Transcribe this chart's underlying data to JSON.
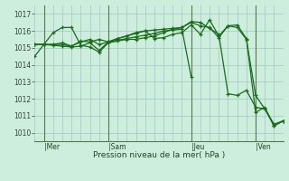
{
  "bg_color": "#ceeedd",
  "grid_color": "#aacccc",
  "line_color": "#1a6b1a",
  "xlabel": "Pression niveau de la mer( hPa )",
  "ylim": [
    1009.5,
    1017.5
  ],
  "xlim": [
    0,
    27
  ],
  "yticks": [
    1010,
    1011,
    1012,
    1013,
    1014,
    1015,
    1016,
    1017
  ],
  "day_labels": [
    "|Mer",
    "|Sam",
    "|Jeu",
    "|Ven"
  ],
  "day_positions": [
    1,
    8,
    17,
    24
  ],
  "series": [
    {
      "x": [
        0,
        1,
        2,
        3,
        4,
        5,
        6,
        7,
        8,
        9,
        10,
        11,
        12,
        13,
        14,
        15,
        16,
        17,
        18,
        19,
        20,
        21,
        22,
        23,
        24,
        25,
        26,
        27
      ],
      "y": [
        1015.2,
        1015.2,
        1015.9,
        1016.2,
        1016.2,
        1015.15,
        1015.05,
        1014.75,
        1015.3,
        1015.4,
        1015.5,
        1015.5,
        1015.6,
        1015.7,
        1015.9,
        1016.1,
        1016.2,
        1016.55,
        1016.5,
        1016.15,
        1015.8,
        1012.3,
        1012.2,
        1012.5,
        1011.5,
        1011.4,
        1010.5,
        1010.7
      ]
    },
    {
      "x": [
        0,
        1,
        2,
        3,
        4,
        5,
        6,
        7,
        8,
        9,
        10,
        11,
        12,
        13,
        14,
        15,
        16,
        17,
        18,
        19,
        20,
        21,
        22,
        23,
        24,
        25,
        26,
        27
      ],
      "y": [
        1015.2,
        1015.2,
        1015.15,
        1015.1,
        1015.05,
        1015.1,
        1015.3,
        1014.85,
        1015.35,
        1015.55,
        1015.7,
        1015.9,
        1016.0,
        1016.05,
        1016.1,
        1016.15,
        1016.2,
        1016.5,
        1016.3,
        1016.2,
        1015.6,
        1016.3,
        1016.35,
        1015.55,
        1011.2,
        1011.5,
        1010.4,
        1010.7
      ]
    },
    {
      "x": [
        0,
        1,
        2,
        3,
        4,
        5,
        6,
        7,
        8,
        9,
        10,
        11,
        12,
        13,
        14,
        15,
        16,
        17,
        18,
        19,
        20,
        21,
        22,
        23,
        24,
        25,
        26,
        27
      ],
      "y": [
        1015.2,
        1015.2,
        1015.2,
        1015.2,
        1015.1,
        1015.35,
        1015.5,
        1015.2,
        1015.35,
        1015.55,
        1015.7,
        1015.85,
        1016.0,
        1015.55,
        1015.6,
        1015.8,
        1015.9,
        1016.35,
        1015.8,
        1016.65,
        1015.7,
        1016.3,
        1016.2,
        1015.5,
        1012.2,
        1011.4,
        1010.4,
        1010.7
      ]
    },
    {
      "x": [
        0,
        1,
        2,
        3,
        4,
        5,
        6,
        7,
        8,
        9,
        10,
        11,
        12,
        13,
        14,
        15,
        16,
        17
      ],
      "y": [
        1014.5,
        1015.2,
        1015.2,
        1015.3,
        1015.1,
        1015.4,
        1015.35,
        1015.5,
        1015.35,
        1015.45,
        1015.55,
        1015.65,
        1015.75,
        1015.85,
        1016.0,
        1016.05,
        1016.1,
        1013.3
      ]
    }
  ],
  "vline_positions": [
    1,
    8,
    17,
    24
  ],
  "vline_color": "#557755"
}
